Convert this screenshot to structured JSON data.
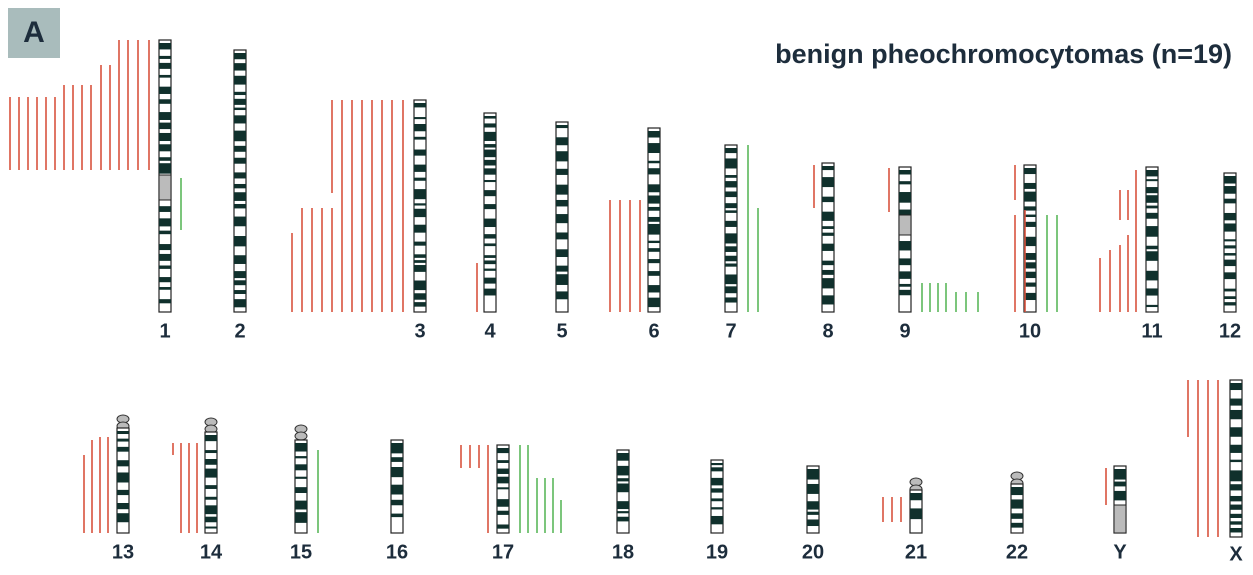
{
  "panel_label": "A",
  "title": "benign pheochromocytomas (n=19)",
  "chromosomes": [
    "1",
    "2",
    "3",
    "4",
    "5",
    "6",
    "7",
    "8",
    "9",
    "10",
    "11",
    "12",
    "13",
    "14",
    "15",
    "16",
    "17",
    "18",
    "19",
    "20",
    "21",
    "22",
    "Y",
    "X"
  ]
}
